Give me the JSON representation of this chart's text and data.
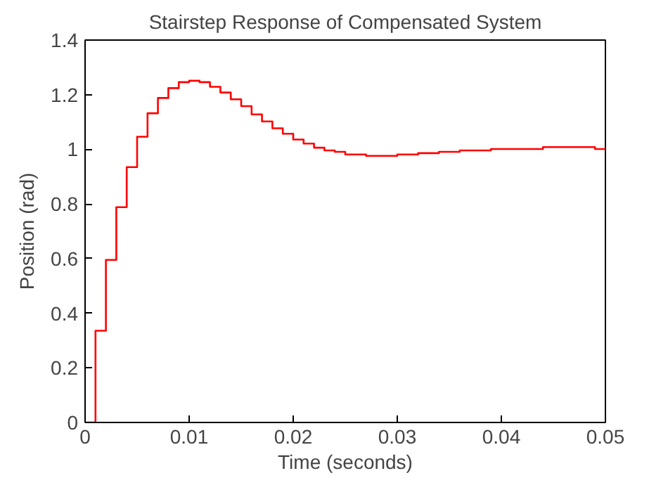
{
  "chart_data": {
    "type": "step",
    "title": "Stairstep Response of Compensated System",
    "xlabel": "Time (seconds)",
    "ylabel": "Position (rad)",
    "x": [
      0,
      0.001,
      0.002,
      0.003,
      0.004,
      0.005,
      0.006,
      0.007,
      0.008,
      0.009,
      0.01,
      0.011,
      0.012,
      0.013,
      0.014,
      0.015,
      0.016,
      0.017,
      0.018,
      0.019,
      0.02,
      0.021,
      0.022,
      0.023,
      0.024,
      0.025,
      0.026,
      0.027,
      0.028,
      0.029,
      0.03,
      0.031,
      0.032,
      0.033,
      0.034,
      0.035,
      0.036,
      0.037,
      0.038,
      0.039,
      0.04,
      0.041,
      0.042,
      0.043,
      0.044,
      0.045,
      0.046,
      0.047,
      0.048,
      0.049,
      0.05
    ],
    "series": [
      {
        "color": "#ff0000",
        "values": [
          0,
          0.336,
          0.595,
          0.788,
          0.935,
          1.046,
          1.132,
          1.188,
          1.224,
          1.246,
          1.251,
          1.246,
          1.229,
          1.208,
          1.183,
          1.158,
          1.128,
          1.102,
          1.077,
          1.057,
          1.036,
          1.021,
          1.006,
          0.996,
          0.991,
          0.981,
          0.981,
          0.976,
          0.976,
          0.976,
          0.981,
          0.981,
          0.986,
          0.986,
          0.991,
          0.991,
          0.996,
          0.996,
          0.996,
          1.001,
          1.001,
          1.001,
          1.001,
          1.001,
          1.008,
          1.008,
          1.008,
          1.008,
          1.008,
          1.001,
          1.001
        ]
      }
    ],
    "xlim": [
      0,
      0.05
    ],
    "xticks": [
      0,
      0.01,
      0.02,
      0.03,
      0.04,
      0.05
    ],
    "ylim": [
      0,
      1.4
    ],
    "yticks": [
      0,
      0.2,
      0.4,
      0.6,
      0.8,
      1,
      1.2,
      1.4
    ],
    "grid": false
  }
}
